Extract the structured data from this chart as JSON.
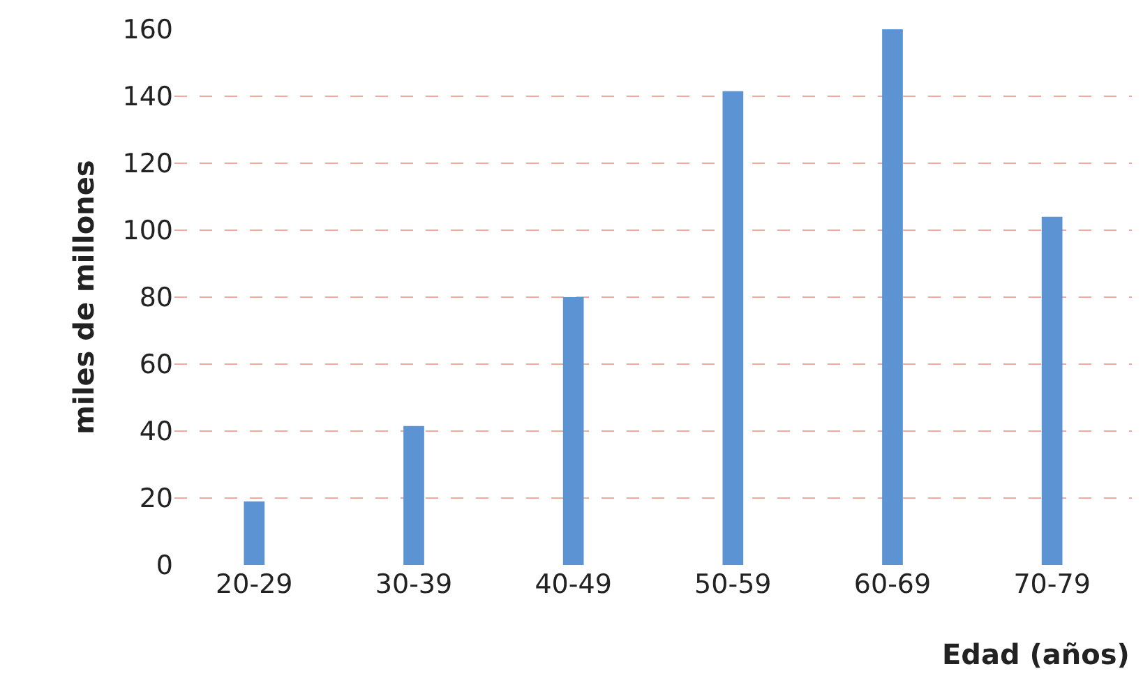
{
  "chart_data": {
    "type": "bar",
    "xlabel": "Edad (años)",
    "ylabel": "miles de millones",
    "categories": [
      "20-29",
      "30-39",
      "40-49",
      "50-59",
      "60-69",
      "70-79"
    ],
    "values": [
      19,
      41.5,
      80,
      141.5,
      160,
      104
    ],
    "color": "#5b93d3",
    "ylim": [
      0,
      160
    ],
    "yticks": [
      0,
      20,
      40,
      60,
      80,
      100,
      120,
      140,
      160
    ],
    "grid": "y",
    "legend": false
  }
}
